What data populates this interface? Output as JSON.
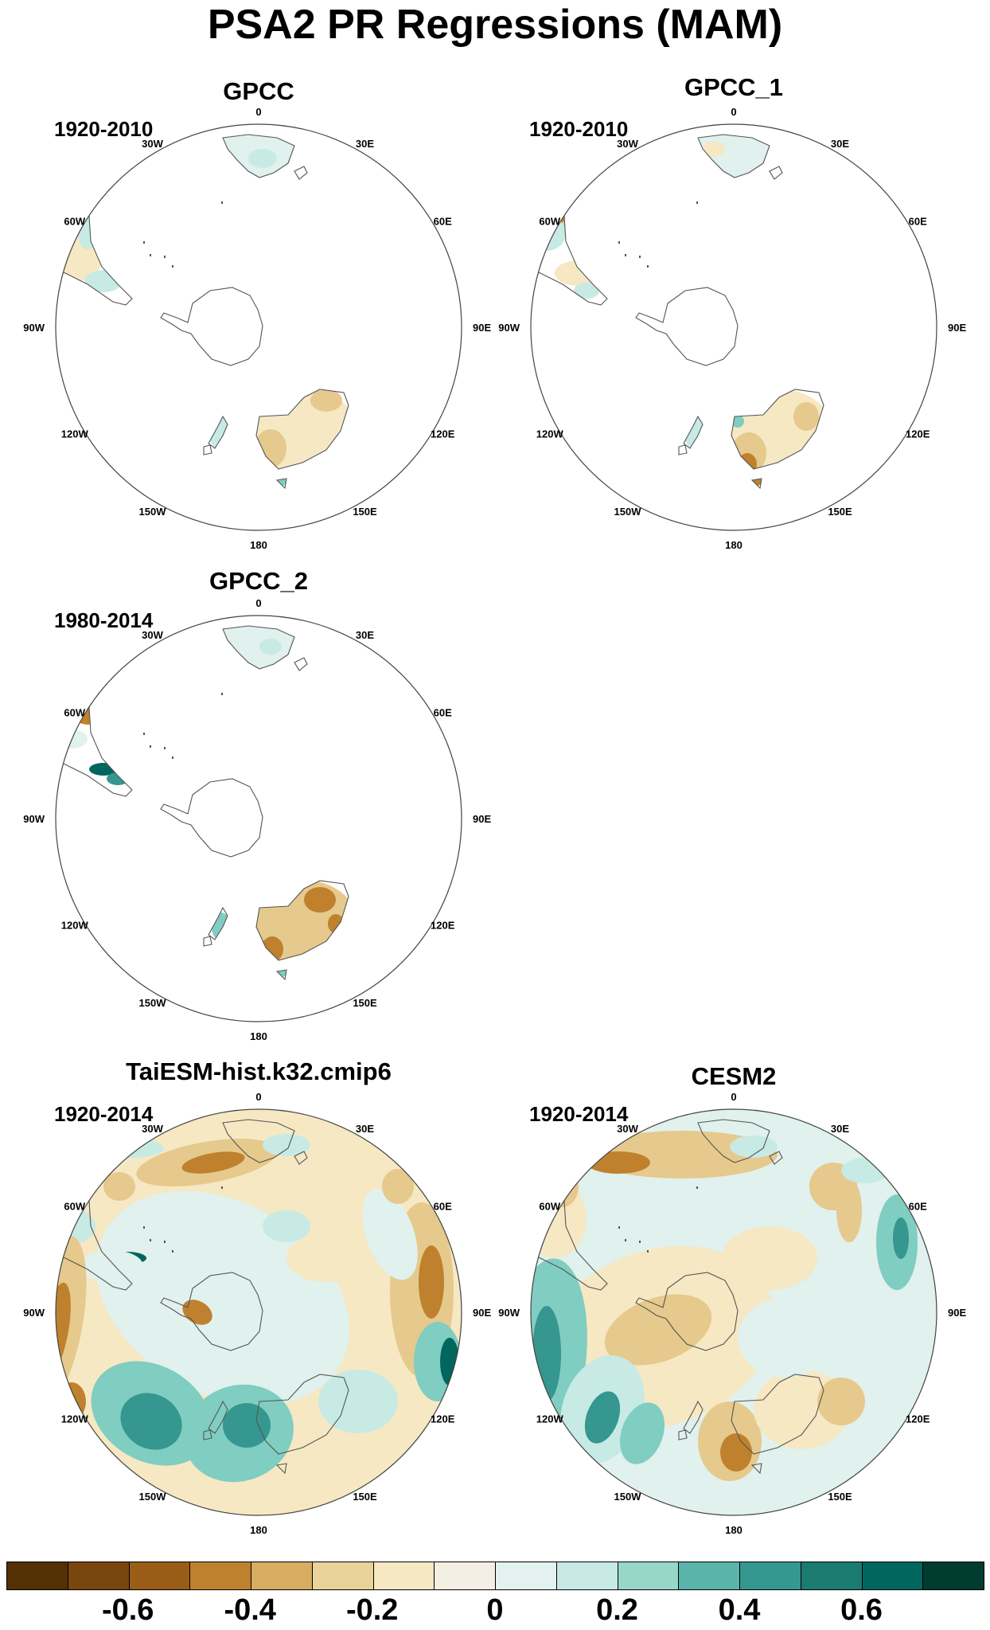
{
  "figure": {
    "title": "PSA2 PR Regressions (MAM)"
  },
  "map_labels": {
    "lon_0": "0",
    "lon_30e": "30E",
    "lon_60e": "60E",
    "lon_90e": "90E",
    "lon_120e": "120E",
    "lon_150e": "150E",
    "lon_180": "180",
    "lon_150w": "150W",
    "lon_120w": "120W",
    "lon_90w": "90W",
    "lon_60w": "60W",
    "lon_30w": "30W"
  },
  "panels": [
    {
      "title": "GPCC",
      "period": "1920-2010"
    },
    {
      "title": "GPCC_1",
      "period": "1920-2010"
    },
    {
      "title": "GPCC_2",
      "period": "1980-2014"
    },
    {
      "title": "TaiESM-hist.k32.cmip6",
      "period": "1920-2014"
    },
    {
      "title": "CESM2",
      "period": "1920-2014"
    }
  ],
  "colorbar": {
    "colors": [
      "#543005",
      "#7a4610",
      "#9a5d17",
      "#bf812d",
      "#d7ad62",
      "#ead39a",
      "#f6e8c3",
      "#f4efe4",
      "#e3f2f0",
      "#c7eae5",
      "#97d7ca",
      "#5ab4a9",
      "#35978f",
      "#1b7b70",
      "#01665e",
      "#003c30"
    ],
    "tick_labels": [
      "-0.6",
      "-0.4",
      "-0.2",
      "0",
      "0.2",
      "0.4",
      "0.6"
    ]
  },
  "colors": {
    "dry_strong": "#8c510a",
    "dry_mid": "#bf812d",
    "dry_light": "#e6c98c",
    "dry_faint": "#f6e8c3",
    "wet_faint": "#e0f1ee",
    "wet_light": "#c7eae5",
    "wet_mid": "#80cdc1",
    "wet_strong": "#35978f",
    "wet_deep": "#01665e",
    "coast": "#555555",
    "rim": "#444444"
  }
}
